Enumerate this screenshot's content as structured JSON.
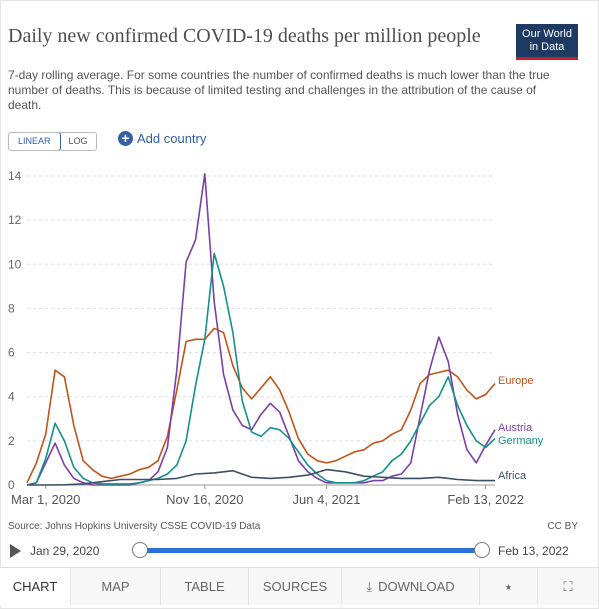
{
  "header": {
    "title": "Daily new confirmed COVID-19 deaths per million people",
    "subtitle": "7-day rolling average. For some countries the number of confirmed deaths is much lower than the true number of deaths. This is because of limited testing and challenges in the attribution of the cause of death.",
    "logo_line1": "Our World",
    "logo_line2": "in Data"
  },
  "controls": {
    "linear_label": "LINEAR",
    "log_label": "LOG",
    "add_country_label": "Add country"
  },
  "footer": {
    "source": "Source: Johns Hopkins University CSSE COVID-19 Data",
    "license": "CC BY"
  },
  "timeline": {
    "start": "Jan 29, 2020",
    "end": "Feb 13, 2022"
  },
  "tabs": {
    "chart": "CHART",
    "map": "MAP",
    "table": "TABLE",
    "sources": "SOURCES",
    "download": "DOWNLOAD"
  },
  "colors": {
    "europe": "#c0531b",
    "austria": "#7b3fa6",
    "germany": "#14918a",
    "africa": "#3d4f66",
    "accent": "#3360a9"
  },
  "chart_data": {
    "type": "line",
    "ylim": [
      0,
      14
    ],
    "yticks": [
      0,
      2,
      4,
      6,
      8,
      10,
      12,
      14
    ],
    "xticks": [
      {
        "label": "Mar 1, 2020",
        "value": 1
      },
      {
        "label": "Nov 16, 2020",
        "value": 9.5
      },
      {
        "label": "Jun 4, 2021",
        "value": 16
      },
      {
        "label": "Feb 13, 2022",
        "value": 24.5
      }
    ],
    "xlim": [
      0,
      25
    ],
    "grid": true,
    "legend_placement": "right",
    "series": [
      {
        "name": "Europe",
        "color_key": "europe",
        "x": [
          0,
          0.5,
          1,
          1.5,
          2,
          2.5,
          3,
          3.5,
          4,
          4.5,
          5,
          5.5,
          6,
          6.5,
          7,
          7.5,
          8,
          8.5,
          9,
          9.5,
          10,
          10.5,
          11,
          11.5,
          12,
          12.5,
          13,
          13.5,
          14,
          14.5,
          15,
          15.5,
          16,
          16.5,
          17,
          17.5,
          18,
          18.5,
          19,
          19.5,
          20,
          20.5,
          21,
          21.5,
          22,
          22.5,
          23,
          23.5,
          24,
          24.5,
          25
        ],
        "values": [
          0.1,
          1.0,
          2.3,
          5.2,
          4.9,
          2.7,
          1.1,
          0.7,
          0.4,
          0.3,
          0.4,
          0.5,
          0.7,
          0.8,
          1.1,
          2.2,
          4.3,
          6.5,
          6.6,
          6.6,
          7.1,
          6.9,
          5.4,
          4.4,
          3.9,
          4.4,
          4.9,
          4.3,
          3.3,
          2.1,
          1.4,
          1.1,
          1.0,
          1.1,
          1.3,
          1.5,
          1.6,
          1.9,
          2.0,
          2.3,
          2.5,
          3.4,
          4.6,
          5.0,
          5.1,
          5.2,
          4.9,
          4.3,
          3.9,
          4.1,
          4.6
        ]
      },
      {
        "name": "Austria",
        "color_key": "austria",
        "x": [
          0,
          0.5,
          1,
          1.5,
          2,
          2.5,
          3,
          3.5,
          4,
          4.5,
          5,
          5.5,
          6,
          6.5,
          7,
          7.5,
          8,
          8.5,
          9,
          9.5,
          10,
          10.5,
          11,
          11.5,
          12,
          12.5,
          13,
          13.5,
          14,
          14.5,
          15,
          15.5,
          16,
          16.5,
          17,
          17.5,
          18,
          18.5,
          19,
          19.5,
          20,
          20.5,
          21,
          21.5,
          22,
          22.5,
          23,
          23.5,
          24,
          24.5,
          25
        ],
        "values": [
          0,
          0.1,
          1.0,
          1.9,
          0.9,
          0.3,
          0.1,
          0,
          0,
          0,
          0,
          0,
          0.1,
          0.2,
          0.6,
          1.7,
          5.2,
          10.1,
          11.1,
          14.1,
          8.3,
          5.0,
          3.4,
          2.7,
          2.5,
          3.2,
          3.7,
          3.3,
          2.2,
          1.1,
          0.6,
          0.3,
          0.1,
          0.1,
          0.1,
          0.1,
          0.1,
          0.2,
          0.2,
          0.4,
          0.5,
          1.0,
          3.1,
          5.2,
          6.7,
          5.6,
          3.2,
          1.6,
          1.0,
          1.8,
          2.5
        ]
      },
      {
        "name": "Germany",
        "color_key": "germany",
        "x": [
          0,
          0.5,
          1,
          1.5,
          2,
          2.5,
          3,
          3.5,
          4,
          4.5,
          5,
          5.5,
          6,
          6.5,
          7,
          7.5,
          8,
          8.5,
          9,
          9.5,
          10,
          10.5,
          11,
          11.5,
          12,
          12.5,
          13,
          13.5,
          14,
          14.5,
          15,
          15.5,
          16,
          16.5,
          17,
          17.5,
          18,
          18.5,
          19,
          19.5,
          20,
          20.5,
          21,
          21.5,
          22,
          22.5,
          23,
          23.5,
          24,
          24.5,
          25
        ],
        "values": [
          0,
          0.1,
          1.2,
          2.8,
          2.0,
          0.8,
          0.3,
          0.1,
          0.05,
          0.05,
          0.05,
          0.05,
          0.1,
          0.2,
          0.3,
          0.5,
          0.9,
          2.0,
          4.5,
          6.6,
          10.5,
          9.0,
          6.9,
          3.8,
          2.4,
          2.2,
          2.6,
          2.5,
          2.1,
          1.5,
          0.9,
          0.5,
          0.2,
          0.1,
          0.1,
          0.1,
          0.2,
          0.4,
          0.6,
          1.1,
          1.4,
          2.0,
          2.8,
          3.6,
          4.0,
          4.9,
          3.6,
          2.7,
          2.0,
          1.7,
          2.1
        ]
      },
      {
        "name": "Africa",
        "color_key": "africa",
        "x": [
          0,
          1,
          2,
          3,
          4,
          5,
          6,
          7,
          8,
          9,
          10,
          11,
          12,
          13,
          14,
          15,
          16,
          17,
          18,
          19,
          20,
          21,
          22,
          23,
          24,
          25
        ],
        "values": [
          0,
          0,
          0.01,
          0.05,
          0.15,
          0.25,
          0.25,
          0.25,
          0.3,
          0.5,
          0.55,
          0.65,
          0.35,
          0.3,
          0.35,
          0.45,
          0.7,
          0.6,
          0.4,
          0.35,
          0.3,
          0.3,
          0.35,
          0.25,
          0.2,
          0.2
        ]
      }
    ]
  }
}
